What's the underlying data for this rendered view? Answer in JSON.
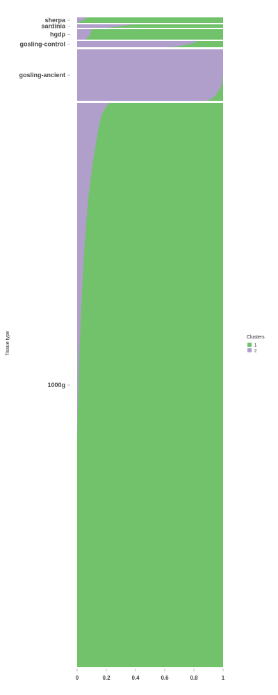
{
  "chart_data": {
    "type": "area",
    "orientation": "horizontal-structure-plot",
    "ylabel": "Tissue type",
    "xlim": [
      0,
      1
    ],
    "x_ticks": [
      "0",
      "0.2",
      "0.4",
      "0.6",
      "0.8",
      "1"
    ],
    "legend": {
      "title": "Clusters",
      "placement": "right",
      "items": [
        {
          "label": "1",
          "color": "#72c26c"
        },
        {
          "label": "2",
          "color": "#b09ecb"
        }
      ]
    },
    "colors": {
      "cluster_1": "#72c26c",
      "cluster_2": "#b09ecb"
    },
    "groups": [
      {
        "name": "sherpa",
        "cluster2_fraction": [
          [
            0,
            0.07
          ],
          [
            0.5,
            0.04
          ],
          [
            1,
            0.0
          ]
        ]
      },
      {
        "name": "sardinia",
        "cluster2_fraction": [
          [
            0,
            0.38
          ],
          [
            0.5,
            0.3
          ],
          [
            1,
            0.2
          ]
        ]
      },
      {
        "name": "hgdp",
        "cluster2_fraction": [
          [
            0,
            0.1
          ],
          [
            0.5,
            0.09
          ],
          [
            1,
            0.06
          ]
        ]
      },
      {
        "name": "gosling-control",
        "cluster2_fraction": [
          [
            0,
            0.82
          ],
          [
            0.3,
            0.8
          ],
          [
            0.6,
            0.75
          ],
          [
            0.85,
            0.69
          ],
          [
            1,
            0.62
          ]
        ]
      },
      {
        "name": "gosling-ancient",
        "cluster2_fraction": [
          [
            0,
            1.0
          ],
          [
            0.5,
            1.0
          ],
          [
            0.7,
            0.99
          ],
          [
            0.85,
            0.96
          ],
          [
            0.95,
            0.93
          ],
          [
            1,
            0.88
          ]
        ]
      },
      {
        "name": "1000g",
        "cluster2_fraction": [
          [
            0,
            0.22
          ],
          [
            0.006,
            0.2
          ],
          [
            0.02,
            0.17
          ],
          [
            0.04,
            0.15
          ],
          [
            0.07,
            0.13
          ],
          [
            0.1,
            0.11
          ],
          [
            0.13,
            0.095
          ],
          [
            0.16,
            0.08
          ],
          [
            0.19,
            0.07
          ],
          [
            0.22,
            0.06
          ],
          [
            0.25,
            0.052
          ],
          [
            0.28,
            0.045
          ],
          [
            0.31,
            0.038
          ],
          [
            0.35,
            0.03
          ],
          [
            0.4,
            0.022
          ],
          [
            0.45,
            0.015
          ],
          [
            0.5,
            0.01
          ],
          [
            0.55,
            0.004
          ],
          [
            0.6,
            0.0
          ],
          [
            1,
            0.0
          ]
        ]
      }
    ]
  }
}
